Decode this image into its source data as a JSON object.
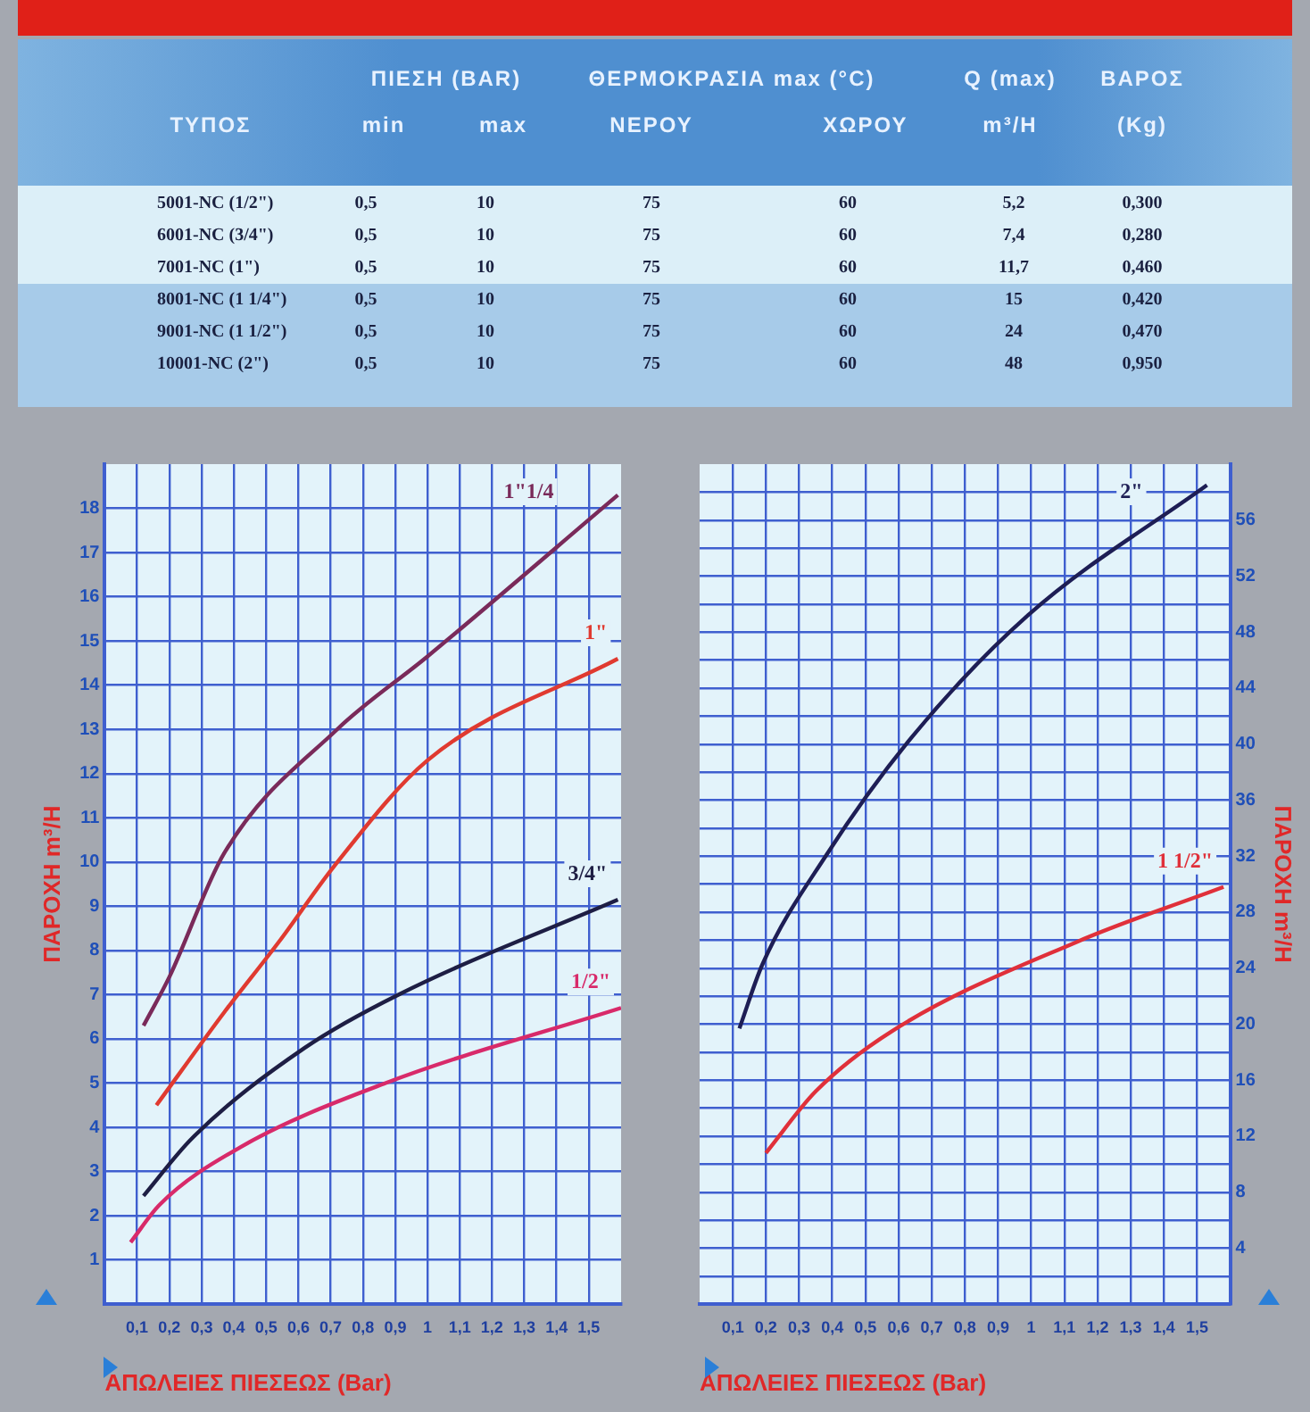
{
  "chart_data": [
    {
      "type": "other",
      "annotations": [
        "ΤΥΠΟΣ",
        "ΠΙΕΣΗ (BAR)",
        "min",
        "max",
        "ΘΕΡΜΟΚΡΑΣΙΑ max (°C)",
        "ΝΕΡΟΥ",
        "ΧΩΡΟΥ",
        "Q (max)",
        "m³/H",
        "ΒΑΡΟΣ",
        "(Kg)",
        "5001-NC (1/2\")",
        "0,5",
        "10",
        "75",
        "60",
        "5,2",
        "0,300",
        "6001-NC (3/4\")",
        "0,5",
        "10",
        "75",
        "60",
        "7,4",
        "0,280",
        "7001-NC (1\")",
        "0,5",
        "10",
        "75",
        "60",
        "11,7",
        "0,460",
        "8001-NC (1 1/4\")",
        "0,5",
        "10",
        "75",
        "60",
        "15",
        "0,420",
        "9001-NC (1 1/2\")",
        "0,5",
        "10",
        "75",
        "60",
        "24",
        "0,470",
        "10001-NC (2\")",
        "0,5",
        "10",
        "75",
        "60",
        "48",
        "0,950"
      ]
    },
    {
      "type": "line",
      "xlabel": "ΑΠΩΛΕΙΕΣ ΠΙΕΣΕΩΣ (Bar)",
      "ylabel": "ΠΑΡΟΧΗ m³/H",
      "grid": true,
      "xlim": [
        0,
        1.6
      ],
      "xticks": [
        {
          "value": 0.1,
          "label": "0,1"
        },
        {
          "value": 0.2,
          "label": "0,2"
        },
        {
          "value": 0.3,
          "label": "0,3"
        },
        {
          "value": 0.4,
          "label": "0,4"
        },
        {
          "value": 0.5,
          "label": "0,5"
        },
        {
          "value": 0.6,
          "label": "0,6"
        },
        {
          "value": 0.7,
          "label": "0,7"
        },
        {
          "value": 0.8,
          "label": "0,8"
        },
        {
          "value": 0.9,
          "label": "0,9"
        },
        1,
        {
          "value": 1.1,
          "label": "1,1"
        },
        {
          "value": 1.2,
          "label": "1,2"
        },
        {
          "value": 1.3,
          "label": "1,3"
        },
        {
          "value": 1.4,
          "label": "1,4"
        },
        {
          "value": 1.5,
          "label": "1,5"
        }
      ],
      "ylim": [
        0,
        19
      ],
      "yticks": [
        1,
        2,
        3,
        4,
        5,
        6,
        7,
        8,
        9,
        10,
        11,
        12,
        13,
        14,
        15,
        16,
        17,
        18
      ],
      "series": [
        {
          "name": "1\"1/4",
          "color": "#7a2a5a",
          "x": [
            0.12,
            0.2,
            0.37,
            0.72,
            1.0,
            1.59
          ],
          "values": [
            6.3,
            7.4,
            10.2,
            13.0,
            14.65,
            18.3
          ]
        },
        {
          "name": "1\"",
          "color": "#e03a30",
          "x": [
            0.16,
            0.37,
            0.54,
            0.71,
            1.0,
            1.59
          ],
          "values": [
            4.5,
            6.6,
            8.2,
            9.9,
            12.3,
            14.6
          ]
        },
        {
          "name": "3/4\"",
          "color": "#1e1e44",
          "x": [
            0.12,
            0.27,
            0.62,
            0.91,
            1.59
          ],
          "values": [
            2.45,
            3.75,
            5.8,
            7.0,
            9.15
          ]
        },
        {
          "name": "1/2\"",
          "color": "#d82a6a",
          "x": [
            0.08,
            0.17,
            0.42,
            0.87,
            1.6
          ],
          "values": [
            1.4,
            2.25,
            3.55,
            5.0,
            6.7
          ]
        }
      ]
    },
    {
      "type": "line",
      "xlabel": "ΑΠΩΛΕΙΕΣ ΠΙΕΣΕΩΣ (Bar)",
      "y2label": "ΠΑΡΟΧΗ m³/H",
      "grid": true,
      "xlim": [
        0,
        1.6
      ],
      "xticks": [
        {
          "value": 0.1,
          "label": "0,1"
        },
        {
          "value": 0.2,
          "label": "0,2"
        },
        {
          "value": 0.3,
          "label": "0,3"
        },
        {
          "value": 0.4,
          "label": "0,4"
        },
        {
          "value": 0.5,
          "label": "0,5"
        },
        {
          "value": 0.6,
          "label": "0,6"
        },
        {
          "value": 0.7,
          "label": "0,7"
        },
        {
          "value": 0.8,
          "label": "0,8"
        },
        {
          "value": 0.9,
          "label": "0,9"
        },
        1,
        {
          "value": 1.1,
          "label": "1,1"
        },
        {
          "value": 1.2,
          "label": "1,2"
        },
        {
          "value": 1.3,
          "label": "1,3"
        },
        {
          "value": 1.4,
          "label": "1,4"
        },
        {
          "value": 1.5,
          "label": "1,5"
        }
      ],
      "y2lim": [
        0,
        60
      ],
      "y2ticks": [
        {
          "value": 2,
          "label": null
        },
        4,
        {
          "value": 6,
          "label": null
        },
        8,
        {
          "value": 10,
          "label": null
        },
        12,
        {
          "value": 14,
          "label": null
        },
        16,
        {
          "value": 18,
          "label": null
        },
        20,
        {
          "value": 22,
          "label": null
        },
        24,
        {
          "value": 26,
          "label": null
        },
        28,
        {
          "value": 30,
          "label": null
        },
        32,
        {
          "value": 34,
          "label": null
        },
        36,
        {
          "value": 38,
          "label": null
        },
        40,
        {
          "value": 42,
          "label": null
        },
        44,
        {
          "value": 46,
          "label": null
        },
        48,
        {
          "value": 50,
          "label": null
        },
        52,
        {
          "value": 54,
          "label": null
        },
        56,
        {
          "value": 58,
          "label": null
        }
      ],
      "series": [
        {
          "name": "2\"",
          "color": "#1e1e55",
          "axis": "y2",
          "x": [
            0.12,
            0.19,
            0.38,
            0.64,
            0.99,
            1.53
          ],
          "values": [
            19.7,
            24.3,
            32,
            40.5,
            49.2,
            58.5
          ]
        },
        {
          "name": "1 1/2\"",
          "color": "#e0303a",
          "axis": "y2",
          "x": [
            0.2,
            0.35,
            0.58,
            1.14,
            1.58
          ],
          "values": [
            10.8,
            15.2,
            19.5,
            25.9,
            29.8
          ]
        }
      ]
    }
  ]
}
